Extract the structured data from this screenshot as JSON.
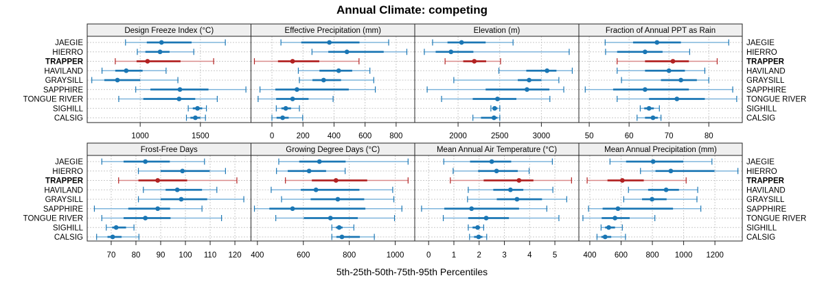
{
  "chart_data": {
    "type": "dot-whisker",
    "title": "Annual Climate: competing",
    "xlabel": "5th-25th-50th-75th-95th Percentiles",
    "ylabel": "",
    "grid": true,
    "legend": "none",
    "categories": [
      "JAEGIE",
      "HIERRO",
      "TRAPPER",
      "HAVILAND",
      "GRAYSILL",
      "SAPPHIRE",
      "TONGUE RIVER",
      "SIGHILL",
      "CALSIG"
    ],
    "highlight": "TRAPPER",
    "colors": {
      "default": "#1a76b4",
      "default_light": "#7fb5dc",
      "highlight": "#b22222",
      "highlight_light": "#d98a8a",
      "strip_bg": "#efefef",
      "grid": "#c8c8c8"
    },
    "panels": [
      {
        "title": "Design Freeze Index (°C)",
        "xlim": [
          560,
          1920
        ],
        "ticks": [
          1000,
          1500
        ],
        "values": [
          [
            878,
            1055,
            1177,
            1427,
            1707
          ],
          [
            976,
            1043,
            1165,
            1244,
            1445
          ],
          [
            793,
            970,
            1061,
            1335,
            1610
          ],
          [
            683,
            793,
            884,
            1020,
            1215
          ],
          [
            598,
            702,
            811,
            1000,
            1313
          ],
          [
            963,
            1085,
            1330,
            1567,
            1878
          ],
          [
            822,
            1026,
            1323,
            1457,
            1640
          ],
          [
            1399,
            1437,
            1476,
            1515,
            1550
          ],
          [
            1384,
            1417,
            1458,
            1499,
            1542
          ]
        ]
      },
      {
        "title": "Effective Precipitation (mm)",
        "xlim": [
          -135,
          920
        ],
        "ticks": [
          0,
          200,
          400,
          600,
          800
        ],
        "values": [
          [
            58,
            189,
            370,
            564,
            752
          ],
          [
            258,
            363,
            483,
            720,
            869
          ],
          [
            -113,
            39,
            133,
            305,
            561
          ],
          [
            170,
            306,
            430,
            517,
            631
          ],
          [
            177,
            261,
            333,
            445,
            656
          ],
          [
            -77,
            22,
            161,
            495,
            666
          ],
          [
            -89,
            27,
            133,
            236,
            394
          ],
          [
            28,
            61,
            89,
            123,
            177
          ],
          [
            0,
            30,
            69,
            108,
            198
          ]
        ]
      },
      {
        "title": "Elevation (m)",
        "xlim": [
          1480,
          3450
        ],
        "ticks": [
          2000,
          2500,
          3000
        ],
        "values": [
          [
            1694,
            1873,
            2042,
            2331,
            2660
          ],
          [
            1595,
            1731,
            1915,
            2184,
            3334
          ],
          [
            1844,
            2062,
            2195,
            2337,
            2510
          ],
          [
            2490,
            2819,
            3068,
            3181,
            3371
          ],
          [
            1949,
            2717,
            2853,
            3000,
            3210
          ],
          [
            1629,
            2331,
            2827,
            3096,
            3269
          ],
          [
            1802,
            2176,
            2473,
            2700,
            3102
          ],
          [
            2394,
            2416,
            2439,
            2473,
            2501
          ],
          [
            2178,
            2275,
            2431,
            2473,
            2501
          ]
        ]
      },
      {
        "title": "Fraction of Annual PPT as Rain",
        "xlim": [
          47.4,
          88.4
        ],
        "ticks": [
          50,
          60,
          70,
          80
        ],
        "values": [
          [
            54,
            61,
            67,
            73,
            85
          ],
          [
            54.1,
            57,
            64,
            68.4,
            75.2
          ],
          [
            57,
            64,
            71,
            75,
            82.1
          ],
          [
            57,
            64,
            70,
            74,
            79
          ],
          [
            58.1,
            68,
            73,
            77,
            80
          ],
          [
            49,
            56,
            64,
            75,
            86
          ],
          [
            57,
            65,
            72,
            79,
            87
          ],
          [
            62.8,
            63.8,
            65,
            66.2,
            67.6
          ],
          [
            62,
            64,
            66,
            67.2,
            68
          ]
        ]
      },
      {
        "title": "Frost-Free Days",
        "xlim": [
          60.3,
          126.5
        ],
        "ticks": [
          70,
          80,
          90,
          100,
          110,
          120
        ],
        "values": [
          [
            66.2,
            75,
            83.8,
            93.7,
            107.7
          ],
          [
            81,
            90,
            98.8,
            109.8,
            116.2
          ],
          [
            73,
            81,
            88.8,
            100.7,
            120.8
          ],
          [
            83,
            92,
            96.7,
            106.7,
            112.7
          ],
          [
            81,
            90,
            98.3,
            108.8,
            123.6
          ],
          [
            63.2,
            76.9,
            88.8,
            93.8,
            106.7
          ],
          [
            66.2,
            75,
            83.8,
            94,
            114.6
          ],
          [
            68,
            70.4,
            72,
            76,
            79.2
          ],
          [
            64.1,
            68.5,
            70.6,
            74.2,
            81.2
          ]
        ]
      },
      {
        "title": "Growing Degree Days (°C)",
        "xlim": [
          372,
          1085
        ],
        "ticks": [
          400,
          600,
          800,
          1000
        ],
        "values": [
          [
            493,
            582,
            670,
            784,
            1056
          ],
          [
            483,
            532,
            625,
            699,
            782
          ],
          [
            522,
            637,
            742,
            878,
            1056
          ],
          [
            460,
            589,
            655,
            844,
            989
          ],
          [
            505,
            632,
            750,
            865,
            994
          ],
          [
            387,
            452,
            553,
            870,
            1029
          ],
          [
            480,
            602,
            718,
            837,
            997
          ],
          [
            724,
            742,
            756,
            771,
            820
          ],
          [
            724,
            744,
            768,
            846,
            909
          ]
        ]
      },
      {
        "title": "Mean Annual Air Temperature (°C)",
        "xlim": [
          -0.55,
          5.95
        ],
        "ticks": [
          0,
          1,
          2,
          3,
          4,
          5
        ],
        "values": [
          [
            0.6,
            1.64,
            2.5,
            3.27,
            4.9
          ],
          [
            0.97,
            1.96,
            2.69,
            3.53,
            3.98
          ],
          [
            0.86,
            2.18,
            3.58,
            4.15,
            5.66
          ],
          [
            1.57,
            2.56,
            3.24,
            3.75,
            4.92
          ],
          [
            1.54,
            2.7,
            3.5,
            4.49,
            5.47
          ],
          [
            -0.28,
            0.62,
            1.7,
            3.58,
            4.68
          ],
          [
            0.58,
            1.57,
            2.28,
            3.18,
            5.16
          ],
          [
            1.57,
            1.74,
            1.94,
            2.04,
            2.18
          ],
          [
            1.62,
            1.8,
            1.98,
            2.13,
            2.3
          ]
        ]
      },
      {
        "title": "Mean Annual Precipitation (mm)",
        "xlim": [
          330,
          1375
        ],
        "ticks": [
          400,
          600,
          800,
          1000,
          1200
        ],
        "values": [
          [
            529,
            632,
            805,
            998,
            1181
          ],
          [
            724,
            820,
            918,
            1197,
            1347
          ],
          [
            383,
            513,
            608,
            745,
            1016
          ],
          [
            647,
            773,
            888,
            970,
            1090
          ],
          [
            617,
            734,
            798,
            891,
            1085
          ],
          [
            392,
            482,
            580,
            932,
            1110
          ],
          [
            356,
            476,
            561,
            655,
            816
          ],
          [
            472,
            498,
            521,
            561,
            608
          ],
          [
            446,
            474,
            498,
            537,
            628
          ]
        ]
      }
    ]
  }
}
